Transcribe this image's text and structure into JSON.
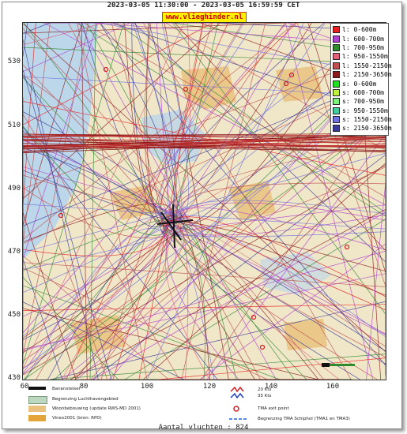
{
  "header": {
    "title": "2023-03-05 11:30:00 - 2023-03-05 16:59:59 CET",
    "site": "www.vlieghinder.nl"
  },
  "map": {
    "y_ticks": [
      "530",
      "510",
      "490",
      "470",
      "450",
      "430"
    ],
    "x_ticks": [
      "60",
      "80",
      "100",
      "120",
      "140",
      "160"
    ],
    "colors": {
      "land": "#f0e6c8",
      "urban": "#e9c27e",
      "water": "#bcd6ea",
      "runway": "#111111"
    }
  },
  "legend": {
    "items": [
      {
        "label": "l: 0-600m",
        "color": "#e82020"
      },
      {
        "label": "l: 600-700m",
        "color": "#b040d0"
      },
      {
        "label": "l: 700-950m",
        "color": "#2e8b2e"
      },
      {
        "label": "l: 950-1550m",
        "color": "#e0607a"
      },
      {
        "label": "l: 1550-2150m",
        "color": "#c05050"
      },
      {
        "label": "l: 2150-3650m",
        "color": "#8b1a1a"
      },
      {
        "label": "s: 0-600m",
        "color": "#20e020"
      },
      {
        "label": "s: 600-700m",
        "color": "#c0f040"
      },
      {
        "label": "s: 700-950m",
        "color": "#7ef07e"
      },
      {
        "label": "s: 950-1550m",
        "color": "#40d0a0"
      },
      {
        "label": "s: 1550-2150m",
        "color": "#7070e0"
      },
      {
        "label": "s: 2150-3650m",
        "color": "#3a3a9a"
      }
    ]
  },
  "bottom_legend": {
    "runway": "Banenstelsel",
    "airport_boundary": "Begrenzing Luchthavengebied",
    "housing": "Woonbebouwing (update RWS-MD 2001)",
    "vinex": "Vinex2001 (bron: RPD)",
    "wind_20": "20 Kts",
    "wind_35": "35 Kts",
    "tma_exit": "TMA exit point",
    "tma_boundary": "Begrenzing TMA Schiphol  (TMA1 en TMA3)"
  },
  "footer": {
    "count": "Aantal vluchten : 824"
  }
}
